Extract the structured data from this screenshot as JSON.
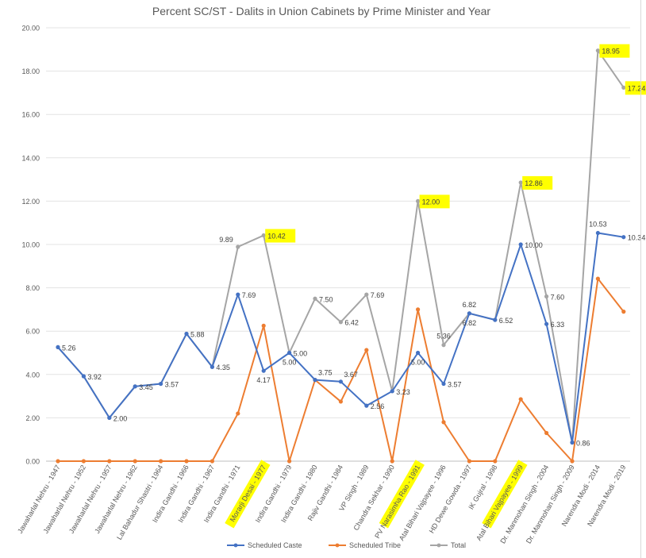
{
  "chart_data": {
    "type": "line",
    "title": "Percent SC/ST - Dalits in Union Cabinets by Prime Minister and Year",
    "xlabel": "",
    "ylabel": "",
    "ylim": [
      0,
      20
    ],
    "yticks": [
      "0.00",
      "2.00",
      "4.00",
      "6.00",
      "8.00",
      "10.00",
      "12.00",
      "14.00",
      "16.00",
      "18.00",
      "20.00"
    ],
    "grid": "horizontal",
    "legend_position": "bottom",
    "categories": [
      "Jawaharlal Nehru - 1947",
      "Jawaharlal Nehru - 1952",
      "Jawaharlal Nehru - 1957",
      "Jawaharlal Nehru - 1962",
      "Lal Bahadur Shastri - 1964",
      "Indira Gandhi - 1966",
      "Indira Gandhi - 1967",
      "Indira Gandhi - 1971",
      "Morarji Desai - 1977",
      "Indira Gandhi - 1979",
      "Indira Gandhi - 1980",
      "Rajiv Gandhi - 1984",
      "VP Singh - 1989",
      "Chandra Sekhar - 1990",
      "PV Narasimha Rao - 1991",
      "Atal Bihari Vajpayee - 1996",
      "HD Dewe Gowda - 1997",
      "IK Gujral - 1998",
      "Atal Bihari Vajpayee - 1999",
      "Dr. Manmohan Singh - 2004",
      "Dr. Manmohan Singh - 2009",
      "Narendra Modi - 2014",
      "Narendra Modi - 2019"
    ],
    "series": [
      {
        "name": "Scheduled Caste",
        "color": "#4472c4",
        "values": [
          5.26,
          3.92,
          2.0,
          3.45,
          3.57,
          5.88,
          4.35,
          7.69,
          4.17,
          5.0,
          3.75,
          3.67,
          2.56,
          3.23,
          5.0,
          3.57,
          6.82,
          6.52,
          10.0,
          6.33,
          0.86,
          10.53,
          10.34
        ]
      },
      {
        "name": "Scheduled Tribe",
        "color": "#ed7d31",
        "values": [
          0,
          0,
          0,
          0,
          0,
          0,
          0,
          2.2,
          6.25,
          0,
          3.75,
          2.75,
          5.13,
          0,
          7.0,
          1.8,
          0,
          0,
          2.86,
          1.3,
          0,
          8.42,
          6.9
        ]
      },
      {
        "name": "Total",
        "color": "#a5a5a5",
        "values": [
          5.26,
          3.92,
          2.0,
          3.45,
          3.57,
          5.88,
          4.35,
          9.89,
          10.42,
          5.0,
          7.5,
          6.42,
          7.69,
          3.23,
          12.0,
          5.36,
          6.82,
          6.52,
          12.86,
          7.6,
          0.86,
          18.95,
          17.24
        ]
      }
    ],
    "data_labels": [
      {
        "text": "5.26",
        "series": 0,
        "index": 0,
        "side": "right"
      },
      {
        "text": "3.92",
        "series": 0,
        "index": 1,
        "side": "right"
      },
      {
        "text": "2.00",
        "series": 0,
        "index": 2,
        "side": "right"
      },
      {
        "text": "3.45",
        "series": 0,
        "index": 3,
        "side": "right"
      },
      {
        "text": "3.57",
        "series": 0,
        "index": 4,
        "side": "right"
      },
      {
        "text": "5.88",
        "series": 0,
        "index": 5,
        "side": "right"
      },
      {
        "text": "4.35",
        "series": 0,
        "index": 6,
        "side": "right"
      },
      {
        "text": "7.69",
        "series": 0,
        "index": 7,
        "side": "right"
      },
      {
        "text": "4.17",
        "series": 0,
        "index": 8,
        "side": "below"
      },
      {
        "text": "5.00",
        "series": 0,
        "index": 9,
        "side": "right"
      },
      {
        "text": "3.75",
        "series": 0,
        "index": 10,
        "side": "above-right"
      },
      {
        "text": "3.67",
        "series": 0,
        "index": 11,
        "side": "above-right"
      },
      {
        "text": "2.56",
        "series": 0,
        "index": 12,
        "side": "right"
      },
      {
        "text": "3.23",
        "series": 0,
        "index": 13,
        "side": "right"
      },
      {
        "text": "5.00",
        "series": 0,
        "index": 14,
        "side": "below"
      },
      {
        "text": "3.57",
        "series": 0,
        "index": 15,
        "side": "right"
      },
      {
        "text": "6.82",
        "series": 0,
        "index": 16,
        "side": "below"
      },
      {
        "text": "6.52",
        "series": 0,
        "index": 17,
        "side": "right"
      },
      {
        "text": "10.00",
        "series": 0,
        "index": 18,
        "side": "right"
      },
      {
        "text": "6.33",
        "series": 0,
        "index": 19,
        "side": "right"
      },
      {
        "text": "0.86",
        "series": 0,
        "index": 20,
        "side": "right"
      },
      {
        "text": "10.53",
        "series": 0,
        "index": 21,
        "side": "above"
      },
      {
        "text": "10.34",
        "series": 0,
        "index": 22,
        "side": "right"
      },
      {
        "text": "9.89",
        "series": 2,
        "index": 7,
        "side": "left"
      },
      {
        "text": "10.42",
        "series": 2,
        "index": 8,
        "side": "right",
        "highlight": true
      },
      {
        "text": "5.00",
        "series": 2,
        "index": 9,
        "side": "below"
      },
      {
        "text": "7.50",
        "series": 2,
        "index": 10,
        "side": "right"
      },
      {
        "text": "6.42",
        "series": 2,
        "index": 11,
        "side": "right"
      },
      {
        "text": "7.69",
        "series": 2,
        "index": 12,
        "side": "right"
      },
      {
        "text": "12.00",
        "series": 2,
        "index": 14,
        "side": "right",
        "highlight": true
      },
      {
        "text": "5.36",
        "series": 2,
        "index": 15,
        "side": "above"
      },
      {
        "text": "6.82",
        "series": 2,
        "index": 16,
        "side": "above"
      },
      {
        "text": "12.86",
        "series": 2,
        "index": 18,
        "side": "right",
        "highlight": true
      },
      {
        "text": "7.60",
        "series": 2,
        "index": 19,
        "side": "right"
      },
      {
        "text": "18.95",
        "series": 2,
        "index": 21,
        "side": "right",
        "highlight": true
      },
      {
        "text": "17.24",
        "series": 2,
        "index": 22,
        "side": "right",
        "highlight": true
      }
    ],
    "highlighted_categories": [
      8,
      14,
      18
    ],
    "highlight_color": "#ffff00"
  }
}
